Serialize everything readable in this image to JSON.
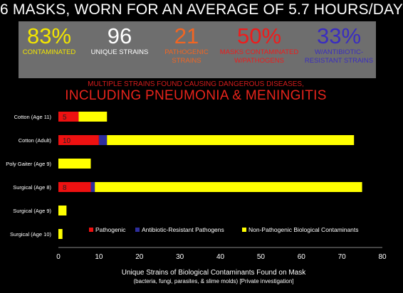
{
  "header": "6 MASKS, WORN FOR AN AVERAGE OF 5.7 HOURS/DAY",
  "stats": [
    {
      "value": "83%",
      "label_lines": [
        "CONTAMINATED"
      ],
      "color": "#f3e600"
    },
    {
      "value": "96",
      "label_lines": [
        "UNIQUE STRAINS"
      ],
      "color": "#ffffff"
    },
    {
      "value": "21",
      "label_lines": [
        "PATHOGENIC",
        "STRAINS"
      ],
      "color": "#f26522"
    },
    {
      "value": "50%",
      "label_lines": [
        "MASKS  CONTAMINATED",
        "W/PATHOGENS"
      ],
      "color": "#ee1c1c"
    },
    {
      "value": "33%",
      "label_lines": [
        "W/ANTIBIOTIC-",
        "RESISTANT  STRAINS"
      ],
      "color": "#3a2dc0"
    }
  ],
  "subtitle_small": "MULTIPLE STRAINS FOUND CAUSING DANGEROUS DISEASES,",
  "subtitle_large": "INCLUDING PNEUMONIA & MENINGITIS",
  "chart_data": {
    "type": "bar",
    "orientation": "horizontal",
    "stacked": true,
    "categories": [
      "Cotton (Age 11)",
      "Cotton (Adult)",
      "Poly Gaiter (Age 9)",
      "Surgical (Age 8)",
      "Surgical (Age 9)",
      "Surgical (Age 10)"
    ],
    "series": [
      {
        "name": "Pathogenic",
        "color": "#ee1111",
        "values": [
          5,
          10,
          0,
          8,
          0,
          0
        ],
        "labels": [
          "5",
          "10",
          "",
          "8",
          "",
          ""
        ]
      },
      {
        "name": "Antibiotic-Resistant Pathogens",
        "color": "#2e2e9e",
        "values": [
          0,
          2,
          0,
          1,
          0,
          0
        ]
      },
      {
        "name": "Non-Pathogenic Biological Contaminants",
        "color": "#ffff00",
        "values": [
          7,
          61,
          8,
          66,
          2,
          1
        ]
      }
    ],
    "xlim": [
      0,
      80
    ],
    "xticks": [
      "0",
      "10",
      "20",
      "30",
      "40",
      "50",
      "60",
      "70",
      "80"
    ],
    "xlabel": "Unique Strains of Biological Contaminants Found on Mask",
    "xlabel_sub": "(bacteria, fungi, parasites, & slime molds) [Private investigation]",
    "legend_position": "bottom-inside",
    "grid": false
  }
}
